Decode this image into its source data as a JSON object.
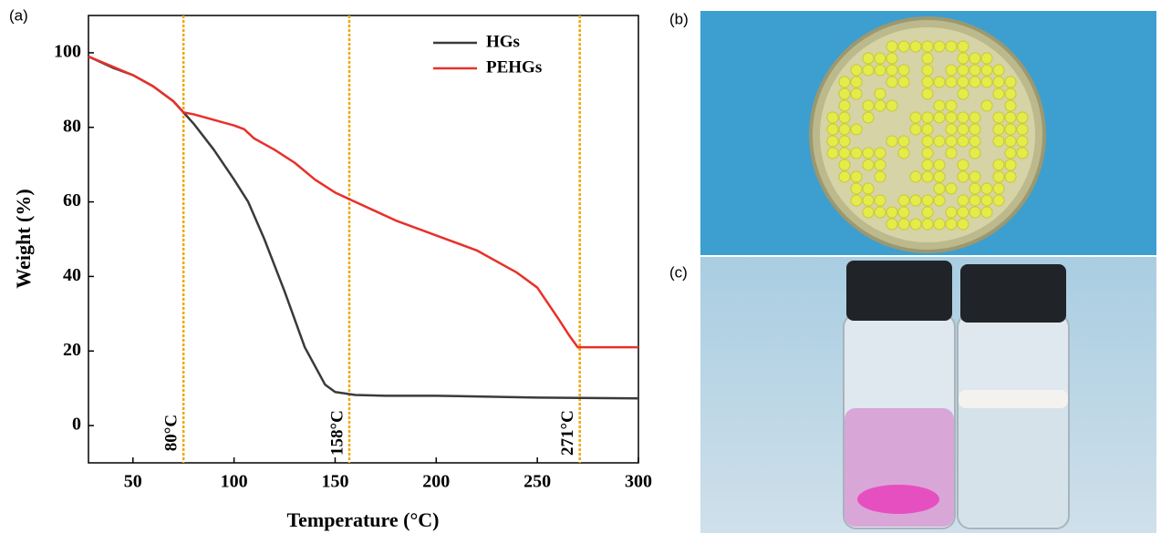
{
  "chart_data": {
    "type": "line",
    "xlabel": "Temperature (°C)",
    "ylabel": "Weight (%)",
    "xlim": [
      28,
      300
    ],
    "xticks": [
      50,
      100,
      150,
      200,
      250,
      300
    ],
    "ylim": [
      -10,
      110
    ],
    "yticks": [
      0,
      20,
      40,
      60,
      80,
      100
    ],
    "grid": false,
    "legend": "upper right",
    "series": [
      {
        "name": "HGs",
        "color": "#3a3a3a",
        "x": [
          28,
          40,
          50,
          60,
          70,
          75,
          80,
          90,
          100,
          107,
          115,
          125,
          135,
          145,
          150,
          160,
          175,
          200,
          250,
          300
        ],
        "values": [
          99,
          96,
          94,
          91,
          87,
          84,
          81,
          74,
          66,
          60,
          50,
          36,
          21,
          11,
          9,
          8.2,
          8,
          8,
          7.5,
          7.3
        ]
      },
      {
        "name": "PEHGs",
        "color": "#e8302a",
        "x": [
          28,
          50,
          60,
          70,
          75,
          80,
          90,
          100,
          105,
          110,
          120,
          130,
          140,
          150,
          160,
          170,
          180,
          200,
          220,
          240,
          250,
          260,
          266,
          270,
          280,
          300
        ],
        "values": [
          99,
          94,
          91,
          87,
          84,
          83.5,
          82,
          80.5,
          79.5,
          77,
          74,
          70.5,
          66,
          62.5,
          60,
          57.5,
          55,
          51,
          47,
          41,
          37,
          29,
          24,
          21,
          21,
          21
        ]
      }
    ],
    "annotations": [
      {
        "x": 75,
        "label": "80°C",
        "color": "#f0a800"
      },
      {
        "x": 157,
        "label": "158°C",
        "color": "#f0a800"
      },
      {
        "x": 271,
        "label": "271°C",
        "color": "#f0a800"
      }
    ]
  },
  "panels": {
    "a": "(a)",
    "b": "(b)",
    "c": "(c)"
  }
}
